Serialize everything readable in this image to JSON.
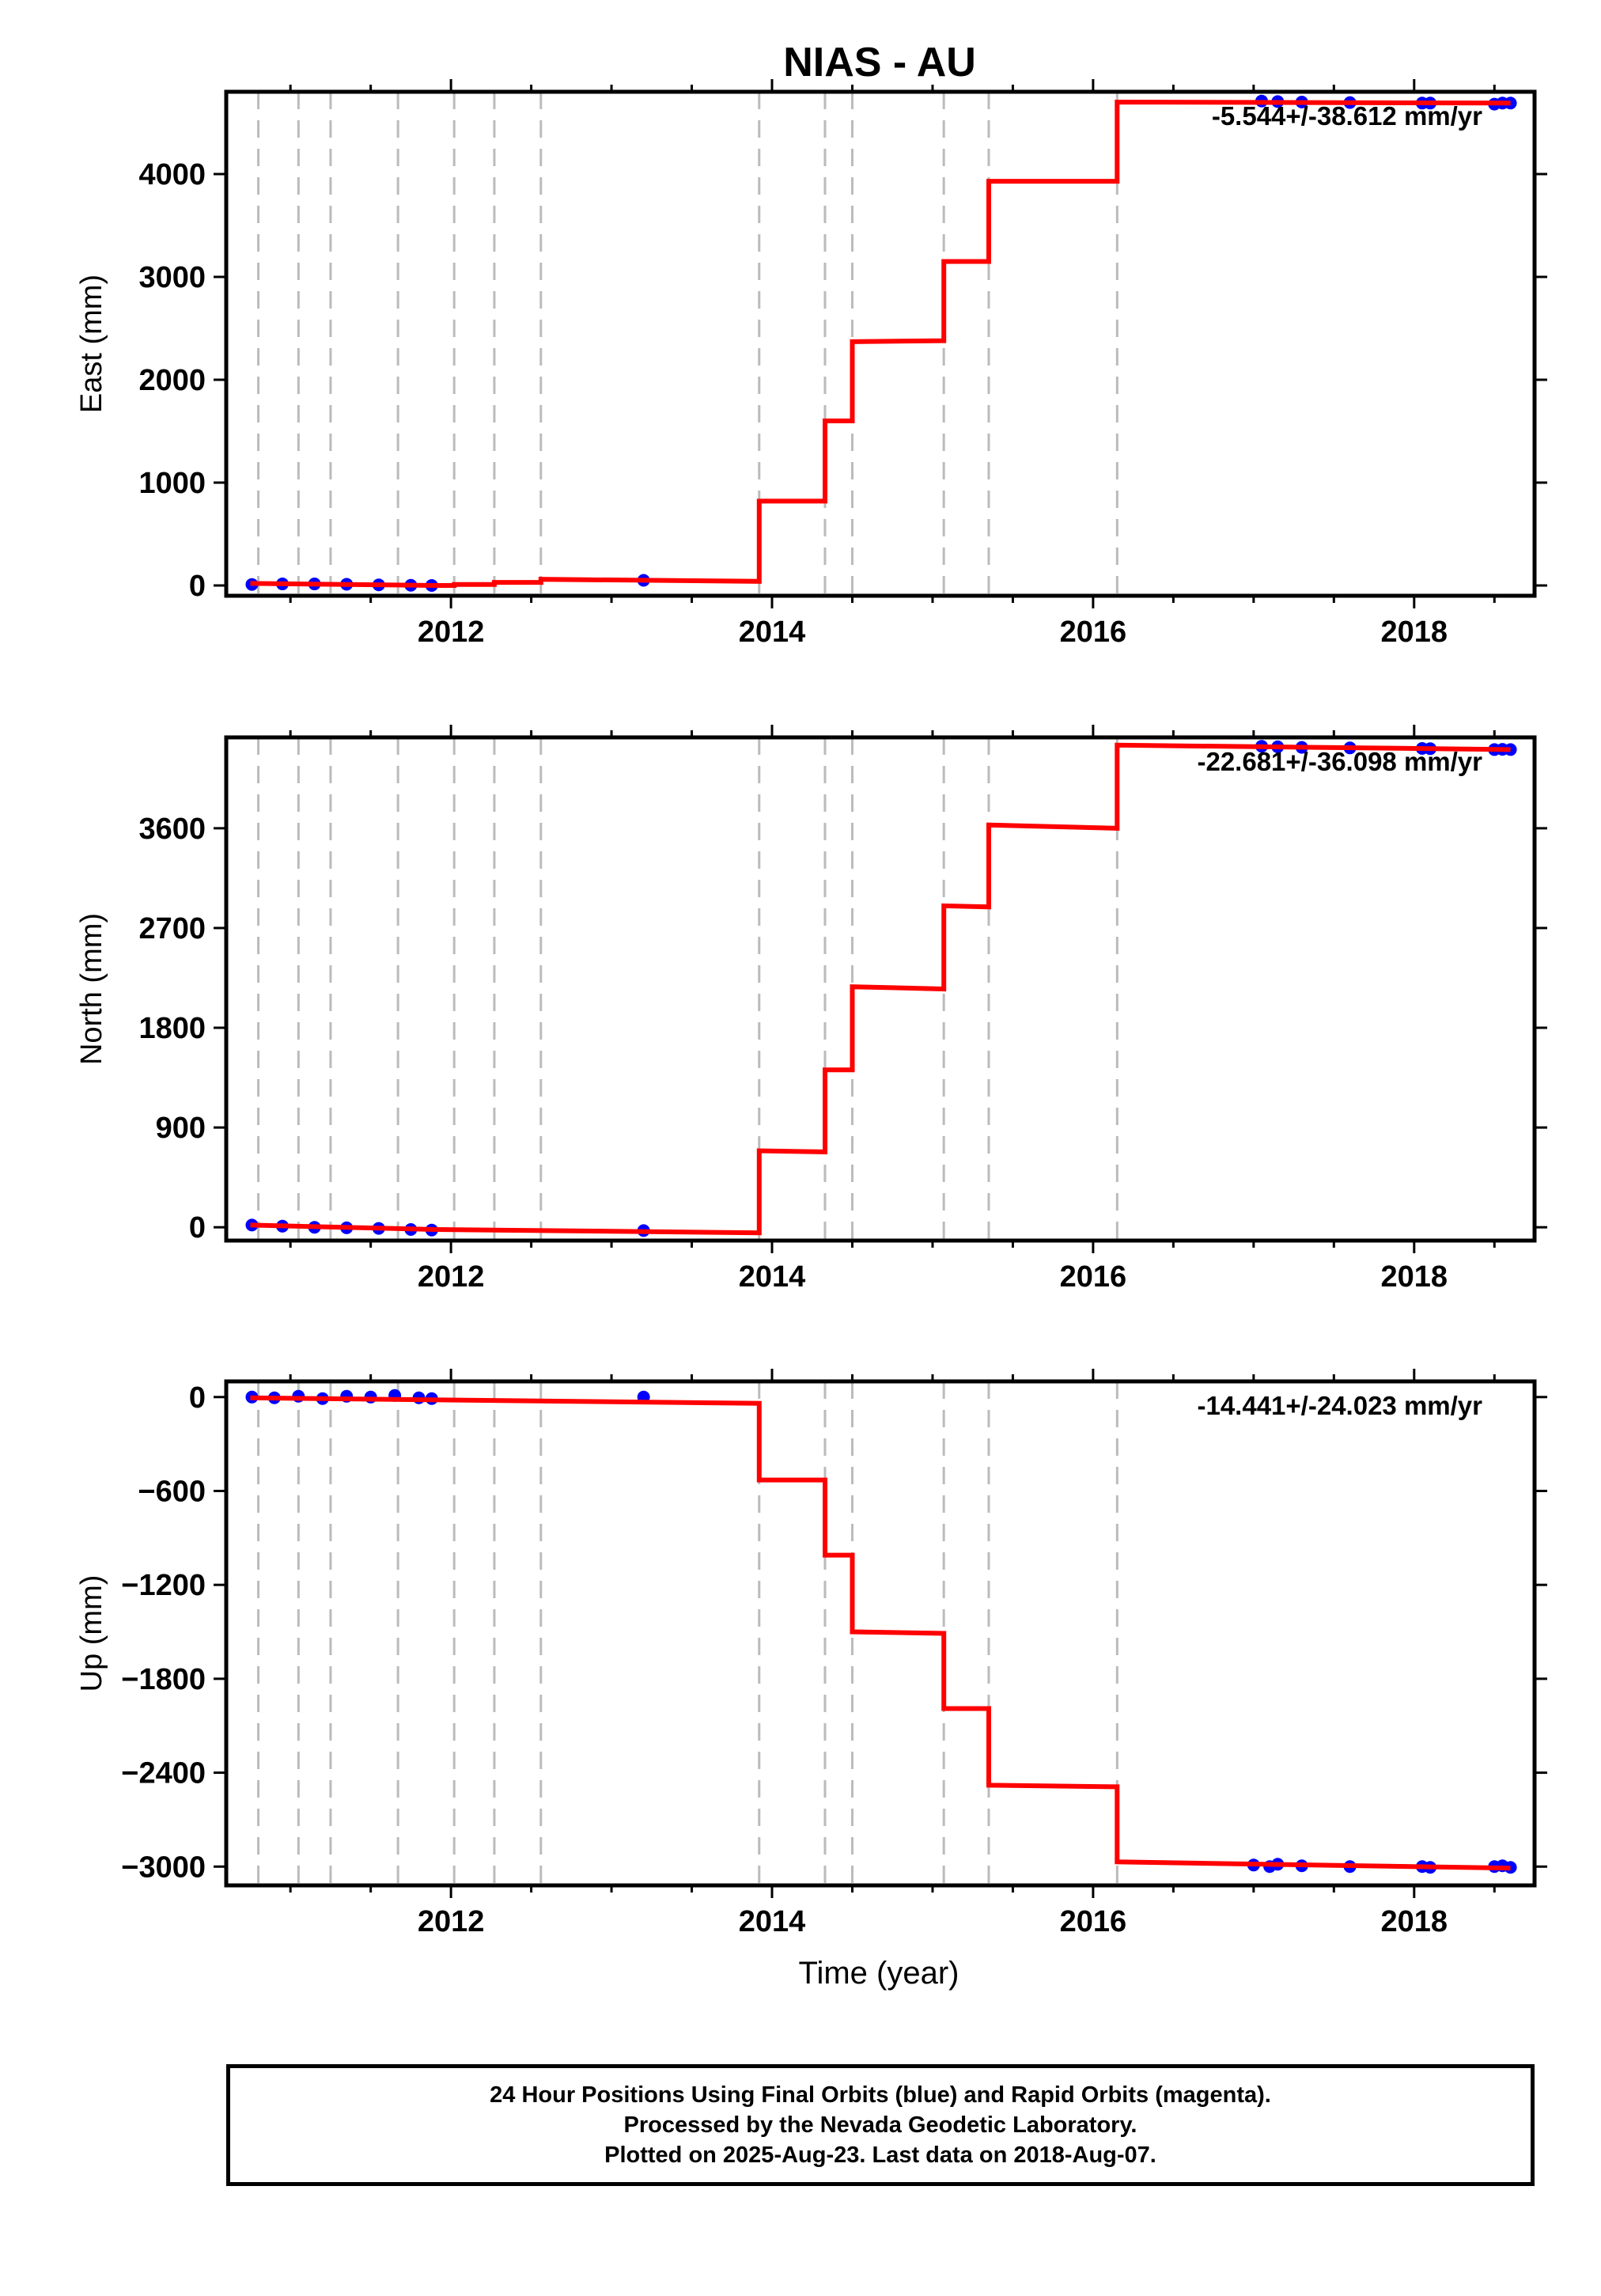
{
  "title": "NIAS - AU",
  "colors": {
    "final_orbits": "#0000ff",
    "model": "#ff0000",
    "events": "#bbbbbb",
    "axis": "#000000"
  },
  "chart_data": [
    {
      "type": "line",
      "ylabel": "East (mm)",
      "xlabel": "",
      "xlim": [
        2010.6,
        2018.75
      ],
      "ylim": [
        -100,
        4800
      ],
      "x_ticks": [
        2012,
        2014,
        2016,
        2018
      ],
      "y_ticks": [
        0,
        1000,
        2000,
        3000,
        4000
      ],
      "rate_label": "-5.544+/-38.612 mm/yr",
      "events": [
        2010.8,
        2011.05,
        2011.25,
        2011.67,
        2012.02,
        2012.27,
        2012.56,
        2013.92,
        2014.33,
        2014.5,
        2015.07,
        2015.35,
        2016.15
      ],
      "model": [
        [
          2010.75,
          20
        ],
        [
          2011.9,
          0
        ],
        [
          2012.02,
          0
        ],
        [
          2012.02,
          10
        ],
        [
          2012.27,
          10
        ],
        [
          2012.27,
          30
        ],
        [
          2012.56,
          30
        ],
        [
          2012.56,
          60
        ],
        [
          2013.92,
          40
        ],
        [
          2013.92,
          820
        ],
        [
          2014.33,
          820
        ],
        [
          2014.33,
          1600
        ],
        [
          2014.5,
          1600
        ],
        [
          2014.5,
          2370
        ],
        [
          2015.07,
          2380
        ],
        [
          2015.07,
          3150
        ],
        [
          2015.35,
          3150
        ],
        [
          2015.35,
          3930
        ],
        [
          2016.15,
          3930
        ],
        [
          2016.15,
          4700
        ],
        [
          2018.6,
          4690
        ]
      ],
      "points": [
        [
          2010.76,
          10
        ],
        [
          2010.95,
          15
        ],
        [
          2011.15,
          15
        ],
        [
          2011.35,
          12
        ],
        [
          2011.55,
          6
        ],
        [
          2011.75,
          2
        ],
        [
          2011.88,
          0
        ],
        [
          2013.2,
          50
        ],
        [
          2017.05,
          4710
        ],
        [
          2017.15,
          4705
        ],
        [
          2017.3,
          4700
        ],
        [
          2017.6,
          4695
        ],
        [
          2018.05,
          4690
        ],
        [
          2018.1,
          4690
        ],
        [
          2018.5,
          4680
        ],
        [
          2018.55,
          4690
        ],
        [
          2018.6,
          4690
        ]
      ]
    },
    {
      "type": "line",
      "ylabel": "North (mm)",
      "xlabel": "",
      "xlim": [
        2010.6,
        2018.75
      ],
      "ylim": [
        -120,
        4420
      ],
      "x_ticks": [
        2012,
        2014,
        2016,
        2018
      ],
      "y_ticks": [
        0,
        900,
        1800,
        2700,
        3600
      ],
      "rate_label": "-22.681+/-36.098 mm/yr",
      "events": [
        2010.8,
        2011.05,
        2011.25,
        2011.67,
        2012.02,
        2012.27,
        2012.56,
        2013.92,
        2014.33,
        2014.5,
        2015.07,
        2015.35,
        2016.15
      ],
      "model": [
        [
          2010.75,
          20
        ],
        [
          2011.9,
          -20
        ],
        [
          2013.92,
          -50
        ],
        [
          2013.92,
          690
        ],
        [
          2014.33,
          680
        ],
        [
          2014.33,
          1420
        ],
        [
          2014.5,
          1420
        ],
        [
          2014.5,
          2170
        ],
        [
          2015.07,
          2150
        ],
        [
          2015.07,
          2900
        ],
        [
          2015.35,
          2890
        ],
        [
          2015.35,
          3630
        ],
        [
          2016.15,
          3600
        ],
        [
          2016.15,
          4350
        ],
        [
          2018.6,
          4310
        ]
      ],
      "points": [
        [
          2010.76,
          20
        ],
        [
          2010.95,
          10
        ],
        [
          2011.15,
          0
        ],
        [
          2011.35,
          -5
        ],
        [
          2011.55,
          -10
        ],
        [
          2011.75,
          -20
        ],
        [
          2011.88,
          -25
        ],
        [
          2013.2,
          -30
        ],
        [
          2017.05,
          4340
        ],
        [
          2017.15,
          4335
        ],
        [
          2017.3,
          4330
        ],
        [
          2017.6,
          4325
        ],
        [
          2018.05,
          4320
        ],
        [
          2018.1,
          4318
        ],
        [
          2018.5,
          4310
        ],
        [
          2018.55,
          4312
        ],
        [
          2018.6,
          4310
        ]
      ]
    },
    {
      "type": "line",
      "ylabel": "Up (mm)",
      "xlabel": "Time (year)",
      "xlim": [
        2010.6,
        2018.75
      ],
      "ylim": [
        -3120,
        100
      ],
      "x_ticks": [
        2012,
        2014,
        2016,
        2018
      ],
      "y_ticks": [
        0,
        -600,
        -1200,
        -1800,
        -2400,
        -3000
      ],
      "rate_label": "-14.441+/-24.023 mm/yr",
      "events": [
        2010.8,
        2011.05,
        2011.25,
        2011.67,
        2012.02,
        2012.27,
        2012.56,
        2013.92,
        2014.33,
        2014.5,
        2015.07,
        2015.35,
        2016.15
      ],
      "model": [
        [
          2010.75,
          -5
        ],
        [
          2013.92,
          -40
        ],
        [
          2013.92,
          -530
        ],
        [
          2014.33,
          -530
        ],
        [
          2014.33,
          -1010
        ],
        [
          2014.5,
          -1010
        ],
        [
          2014.5,
          -1500
        ],
        [
          2015.07,
          -1510
        ],
        [
          2015.07,
          -1990
        ],
        [
          2015.35,
          -1990
        ],
        [
          2015.35,
          -2480
        ],
        [
          2016.15,
          -2490
        ],
        [
          2016.15,
          -2970
        ],
        [
          2018.6,
          -3010
        ]
      ],
      "points": [
        [
          2010.76,
          0
        ],
        [
          2010.9,
          -5
        ],
        [
          2011.05,
          5
        ],
        [
          2011.2,
          -10
        ],
        [
          2011.35,
          5
        ],
        [
          2011.5,
          0
        ],
        [
          2011.65,
          10
        ],
        [
          2011.8,
          -5
        ],
        [
          2011.88,
          -10
        ],
        [
          2013.2,
          0
        ],
        [
          2017.0,
          -2990
        ],
        [
          2017.1,
          -3000
        ],
        [
          2017.15,
          -2985
        ],
        [
          2017.3,
          -2995
        ],
        [
          2017.6,
          -3000
        ],
        [
          2018.05,
          -3000
        ],
        [
          2018.1,
          -3005
        ],
        [
          2018.5,
          -3000
        ],
        [
          2018.55,
          -2995
        ],
        [
          2018.6,
          -3005
        ]
      ]
    }
  ],
  "caption": {
    "line1": "24 Hour Positions Using Final Orbits (blue) and Rapid Orbits (magenta).",
    "line2": "Processed by the Nevada Geodetic Laboratory.",
    "line3": "Plotted on 2025-Aug-23. Last data on 2018-Aug-07."
  }
}
